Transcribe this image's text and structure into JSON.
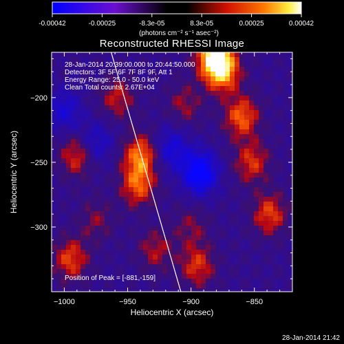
{
  "colorbar": {
    "tick_labels": [
      "-0.00042",
      "-0.00025",
      "-8.3e-05",
      "8.3e-05",
      "0.00025",
      "0.00042"
    ],
    "units_label": "(photons cm⁻² s⁻¹ asec⁻²)",
    "colors": {
      "low": "#0000ff",
      "mid": "#000000",
      "high": "#ffffff"
    }
  },
  "title": "Reconstructed RHESSI Image",
  "annotations": {
    "time_range": "28-Jan-2014 20:39:00.000 to 20:44:50.000",
    "detectors": "Detectors: 3F 5F 6F 7F 8F 9F, Att 1",
    "energy": "Energy Range: 25.0 - 50.0 keV",
    "clean": "Clean     Total counts: 2.67E+04",
    "peak": "Position of Peak = [-881,-159]"
  },
  "footer_timestamp": "28-Jan-2014 21:42",
  "chart_data": {
    "type": "heatmap",
    "title": "Reconstructed RHESSI Image",
    "xlabel": "Heliocentric X (arcsec)",
    "ylabel": "Heliocentric Y (arcsec)",
    "xlim": [
      -1010,
      -820
    ],
    "ylim": [
      -350,
      -165
    ],
    "x_ticks": [
      -1000,
      -950,
      -900,
      -850
    ],
    "y_ticks": [
      -200,
      -250,
      -300
    ],
    "colorbar_range": [
      -0.00042,
      0.00042
    ],
    "peak_position": [
      -881,
      -159
    ],
    "limb_line": {
      "x": [
        -963,
        -908
      ],
      "y": [
        -165,
        -350
      ]
    },
    "hotspots": [
      {
        "x": -940,
        "y": -245,
        "value": 0.0003
      },
      {
        "x": -942,
        "y": -268,
        "value": 0.00026
      },
      {
        "x": -958,
        "y": -200,
        "value": 0.00018
      },
      {
        "x": -990,
        "y": -245,
        "value": 0.00022
      },
      {
        "x": -995,
        "y": -325,
        "value": 0.00024
      },
      {
        "x": -975,
        "y": -295,
        "value": 0.00012
      },
      {
        "x": -928,
        "y": -318,
        "value": 0.00016
      },
      {
        "x": -895,
        "y": -330,
        "value": 0.00022
      },
      {
        "x": -860,
        "y": -215,
        "value": 0.00028
      },
      {
        "x": -852,
        "y": -250,
        "value": 0.00022
      },
      {
        "x": -838,
        "y": -290,
        "value": 0.00024
      },
      {
        "x": -875,
        "y": -180,
        "value": 0.00034
      },
      {
        "x": -882,
        "y": -168,
        "value": 0.00042
      },
      {
        "x": -905,
        "y": -205,
        "value": 0.00014
      },
      {
        "x": -900,
        "y": -300,
        "value": 0.00012
      }
    ],
    "coldspots": [
      {
        "x": -893,
        "y": -258,
        "value": -0.0004
      },
      {
        "x": -915,
        "y": -240,
        "value": -0.00022
      },
      {
        "x": -1000,
        "y": -210,
        "value": -0.0002
      },
      {
        "x": -975,
        "y": -235,
        "value": -0.00018
      }
    ]
  }
}
